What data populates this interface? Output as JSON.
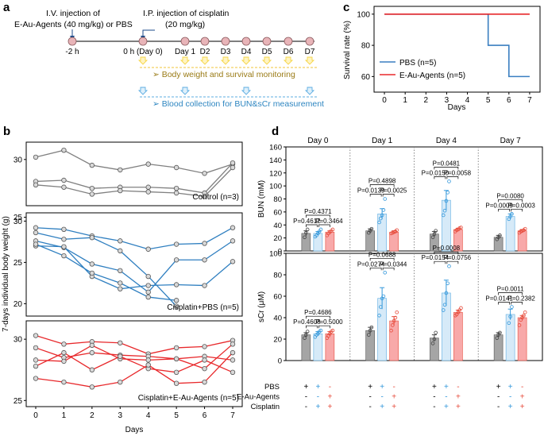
{
  "panel_a": {
    "letter": "a",
    "iv_text": [
      "I.V. injection of",
      "E-Au-Agents (40 mg/kg) or PBS"
    ],
    "ip_text": [
      "I.P. injection of cisplatin",
      "(20 mg/kg)"
    ],
    "timeline_labels": [
      "-2 h",
      "0 h (Day 0)",
      "Day 1",
      "D2",
      "D3",
      "D4",
      "D5",
      "D6",
      "D7"
    ],
    "monitor_text": "➢ Body weight and survival monitoring",
    "blood_text": "➢ Blood collection for BUN&sCr measurement",
    "colors": {
      "dot": "#e8b4b8",
      "monitor": "#9a7b16",
      "blood": "#2e86c1",
      "arrow_yellow": "#f5d547",
      "arrow_blue": "#5dade2"
    }
  },
  "chart_data": [
    {
      "id": "c",
      "type": "line",
      "letter": "c",
      "ylabel": "Survival rate (%)",
      "xlabel": "Days",
      "xlim": [
        -0.5,
        7.5
      ],
      "ylim": [
        50,
        105
      ],
      "xticks": [
        "0",
        "1",
        "2",
        "3",
        "4",
        "5",
        "6",
        "7"
      ],
      "yticks": [
        "60",
        "80",
        "100"
      ],
      "series": [
        {
          "name": "PBS (n=5)",
          "color": "#3a7fc1",
          "step_x": [
            0,
            5,
            5,
            6,
            6,
            7
          ],
          "step_y": [
            100,
            100,
            80,
            80,
            60,
            60
          ]
        },
        {
          "name": "E-Au-Agents (n=5)",
          "color": "#e8282b",
          "step_x": [
            0,
            7
          ],
          "step_y": [
            100,
            100
          ]
        }
      ]
    },
    {
      "id": "b",
      "type": "line",
      "letter": "b",
      "ylabel": "7-days individual body weight (g)",
      "xlabel": "Days",
      "x": [
        0,
        1,
        2,
        3,
        4,
        5,
        6,
        7
      ],
      "xticks": [
        "0",
        "1",
        "2",
        "3",
        "4",
        "5",
        "6",
        "7"
      ],
      "ylim": [
        17,
        32
      ],
      "yticks": [
        "20",
        "25",
        "30"
      ],
      "panels": [
        {
          "name": "Control (n=3)",
          "color": "#808080",
          "series": [
            [
              30.2,
              30.8,
              29.5,
              29.1,
              29.6,
              29.3,
              28.8,
              29.6
            ],
            [
              28.1,
              28.2,
              27.5,
              27.6,
              27.6,
              27.5,
              27.1,
              29.7
            ],
            [
              27.8,
              27.6,
              27.0,
              27.3,
              27.2,
              27.1,
              26.8,
              29.3
            ]
          ]
        },
        {
          "name": "Cisplatin+PBS (n=5)",
          "color": "#2f7fc0",
          "series": [
            [
              29.2,
              29.0,
              28.2,
              27.6,
              26.6,
              27.2,
              27.3,
              29.2
            ],
            [
              28.6,
              27.8,
              28.0,
              26.4,
              23.3,
              19.7
            ],
            [
              27.6,
              26.8,
              24.8,
              24.0,
              21.4,
              25.3,
              25.3,
              27.6
            ],
            [
              27.0,
              26.9,
              23.3,
              21.8,
              22.2,
              22.3,
              22.2,
              25.1
            ],
            [
              27.2,
              25.8,
              23.7,
              22.5,
              20.8,
              20.4
            ]
          ]
        },
        {
          "name": "Cisplatin+E-Au-Agents (n=5)",
          "color": "#e8282b",
          "series": [
            [
              30.3,
              29.6,
              29.8,
              29.7,
              28.8,
              29.3,
              29.4,
              29.9
            ],
            [
              29.3,
              28.5,
              28.9,
              28.7,
              28.6,
              28.4,
              28.6,
              28.3
            ],
            [
              28.3,
              28.2,
              29.5,
              28.4,
              28.3,
              28.4,
              27.6,
              29.6
            ],
            [
              27.8,
              28.9,
              27.5,
              28.6,
              27.6,
              27.3,
              28.3,
              27.3
            ],
            [
              26.8,
              26.5,
              26.1,
              26.5,
              27.9,
              26.4,
              26.5,
              28.9
            ]
          ]
        }
      ]
    },
    {
      "id": "d",
      "type": "bar",
      "letter": "d",
      "days": [
        "Day 0",
        "Day 1",
        "Day 4",
        "Day 7"
      ],
      "group_colors": [
        "#a5a5a5",
        "#d6eaf8",
        "#f8a9a9"
      ],
      "edge_colors": [
        "#555555",
        "#5dade2",
        "#e74c3c"
      ],
      "dot_colors": [
        "#444444",
        "#3498db",
        "#e74c3c"
      ],
      "panels": [
        {
          "ylabel": "BUN (mM)",
          "ylim": [
            0,
            160
          ],
          "yticks": [
            "0",
            "20",
            "40",
            "60",
            "80",
            "100",
            "120",
            "140",
            "160"
          ],
          "values": [
            [
              27,
              27,
              29
            ],
            [
              31,
              57,
              29
            ],
            [
              26,
              78,
              33
            ],
            [
              21,
              53,
              31
            ]
          ],
          "errors": [
            [
              4,
              3,
              2
            ],
            [
              3,
              8,
              2
            ],
            [
              4,
              15,
              2
            ],
            [
              3,
              4,
              2
            ]
          ],
          "points": [
            [
              [
                21,
                28,
                33
              ],
              [
                22,
                24,
                27,
                30,
                33
              ],
              [
                24,
                27,
                29,
                31,
                33
              ]
            ],
            [
              [
                28,
                31,
                34
              ],
              [
                44,
                50,
                55,
                63,
                80
              ],
              [
                27,
                28,
                29,
                30,
                32
              ]
            ],
            [
              [
                21,
                26,
                31
              ],
              [
                55,
                62,
                77,
                90,
                107
              ],
              [
                30,
                32,
                33,
                35,
                36
              ]
            ],
            [
              [
                18,
                21,
                24
              ],
              [
                49,
                53,
                57
              ],
              [
                28,
                30,
                31,
                32,
                34
              ]
            ]
          ],
          "pvalues": [
            {
              "p12": "P=0.4612",
              "p23": "P=0.3464",
              "p13": "P=0.4371"
            },
            {
              "p12": "P=0.0139",
              "p23": "P=0.0025",
              "p13": "P=0.4898"
            },
            {
              "p12": "P=0.0150",
              "p23": "P=0.0058",
              "p13": "P=0.0481"
            },
            {
              "p12": "P=0.0009",
              "p23": "P=0.0003",
              "p13": "P=0.0080"
            }
          ]
        },
        {
          "ylabel": "sCr (μM)",
          "ylim": [
            0,
            100
          ],
          "yticks": [
            "0",
            "20",
            "40",
            "60",
            "80",
            "100"
          ],
          "values": [
            [
              24,
              25,
              25
            ],
            [
              28,
              58,
              37
            ],
            [
              21,
              63,
              45
            ],
            [
              24,
              43,
              40
            ]
          ],
          "errors": [
            [
              2,
              2,
              2
            ],
            [
              3,
              10,
              4
            ],
            [
              3,
              12,
              2
            ],
            [
              2,
              5,
              2
            ]
          ],
          "points": [
            [
              [
                21,
                24,
                27
              ],
              [
                22,
                24,
                25,
                27,
                28
              ],
              [
                21,
                23,
                25,
                27,
                28
              ]
            ],
            [
              [
                24,
                28,
                31
              ],
              [
                42,
                50,
                58,
                60,
                82
              ],
              [
                28,
                33,
                37,
                40,
                45
              ]
            ],
            [
              [
                16,
                20,
                26
              ],
              [
                47,
                52,
                63,
                72,
                88
              ],
              [
                42,
                43,
                45,
                47,
                49
              ]
            ],
            [
              [
                21,
                24,
                26
              ],
              [
                35,
                41,
                50
              ],
              [
                33,
                38,
                40,
                42,
                45
              ]
            ]
          ],
          "pvalues": [
            {
              "p12": "P=0.4608",
              "p23": "P=0.5000",
              "p13": "P=0.4686"
            },
            {
              "p12": "P=0.0274",
              "p23": "P=0.0344",
              "p13": "P=0.0688"
            },
            {
              "p12": "P=0.0154",
              "p23": "P=0.0756",
              "p13": "P=0.0008"
            },
            {
              "p12": "P=0.0141",
              "p23": "P=0.2382",
              "p13": "P=0.0011"
            }
          ]
        }
      ],
      "legend_rows": [
        {
          "label": "PBS",
          "signs": [
            "+",
            "+",
            "-"
          ]
        },
        {
          "label": "E-Au-Agents",
          "signs": [
            "-",
            "-",
            "+"
          ]
        },
        {
          "label": "Cisplatin",
          "signs": [
            "-",
            "+",
            "+"
          ]
        }
      ],
      "legend_sign_colors": [
        "#000000",
        "#3498db",
        "#e74c3c"
      ]
    }
  ]
}
